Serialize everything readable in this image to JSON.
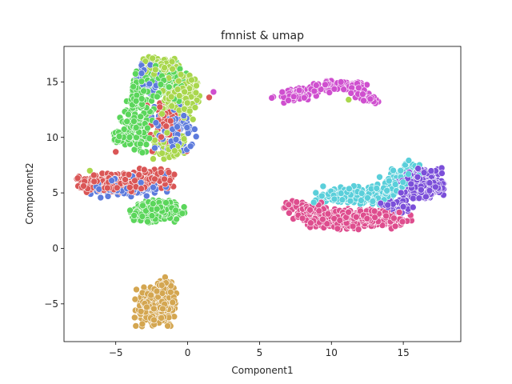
{
  "chart_data": {
    "type": "scatter",
    "title": "fmnist & umap",
    "xlabel": "Component1",
    "ylabel": "Component2",
    "xlim": [
      -8.6,
      19.0
    ],
    "ylim": [
      -8.4,
      18.2
    ],
    "xticks": [
      -5,
      0,
      5,
      10,
      15
    ],
    "yticks": [
      -5,
      0,
      5,
      10,
      15
    ],
    "grid": false,
    "legend": "none",
    "marker_edge_color": "#ffffff",
    "clusters": [
      {
        "color": "#d4a650",
        "cx": -2.3,
        "cy": -5.3,
        "sx": 0.85,
        "sy": 1.0,
        "n": 260,
        "tilt": 0.0
      },
      {
        "color": "#d4a650",
        "cx": -1.5,
        "cy": -3.3,
        "sx": 0.4,
        "sy": 0.5,
        "n": 30,
        "tilt": 0.0
      },
      {
        "color": "#cf4fcf",
        "cx": 8.0,
        "cy": 14.0,
        "sx": 1.2,
        "sy": 0.4,
        "n": 70,
        "tilt": 0.25
      },
      {
        "color": "#cf4fcf",
        "cx": 10.8,
        "cy": 14.6,
        "sx": 1.1,
        "sy": 0.3,
        "n": 70,
        "tilt": 0.0
      },
      {
        "color": "#cf4fcf",
        "cx": 12.2,
        "cy": 13.8,
        "sx": 0.6,
        "sy": 0.5,
        "n": 50,
        "tilt": -0.6
      },
      {
        "color": "#de4d8e",
        "cx": 11.8,
        "cy": 2.6,
        "sx": 2.2,
        "sy": 0.55,
        "n": 320,
        "tilt": 0.0
      },
      {
        "color": "#de4d8e",
        "cx": 8.3,
        "cy": 3.4,
        "sx": 0.9,
        "sy": 0.5,
        "n": 80,
        "tilt": 0.0
      },
      {
        "color": "#5acfda",
        "cx": 11.5,
        "cy": 4.8,
        "sx": 1.7,
        "sy": 0.5,
        "n": 170,
        "tilt": 0.0
      },
      {
        "color": "#5acfda",
        "cx": 14.6,
        "cy": 6.2,
        "sx": 0.9,
        "sy": 0.8,
        "n": 110,
        "tilt": 0.6
      },
      {
        "color": "#7b4fd9",
        "cx": 16.4,
        "cy": 5.8,
        "sx": 1.0,
        "sy": 0.8,
        "n": 260,
        "tilt": 0.0
      },
      {
        "color": "#7b4fd9",
        "cx": 14.6,
        "cy": 3.8,
        "sx": 0.8,
        "sy": 0.5,
        "n": 50,
        "tilt": 0.0
      },
      {
        "color": "#da5656",
        "cx": -5.2,
        "cy": 5.9,
        "sx": 1.4,
        "sy": 0.5,
        "n": 240,
        "tilt": 0.0
      },
      {
        "color": "#da5656",
        "cx": -2.7,
        "cy": 6.3,
        "sx": 1.1,
        "sy": 0.5,
        "n": 150,
        "tilt": 0.0
      },
      {
        "color": "#da5656",
        "cx": -1.5,
        "cy": 10.7,
        "sx": 0.8,
        "sy": 1.5,
        "n": 60,
        "tilt": 0.0
      },
      {
        "color": "#5d7bdc",
        "cx": -4.3,
        "cy": 5.6,
        "sx": 1.8,
        "sy": 0.6,
        "n": 130,
        "tilt": 0.0
      },
      {
        "color": "#5d7bdc",
        "cx": -1.0,
        "cy": 10.7,
        "sx": 0.9,
        "sy": 1.3,
        "n": 120,
        "tilt": 0.0
      },
      {
        "color": "#5d7bdc",
        "cx": -2.3,
        "cy": 15.5,
        "sx": 0.8,
        "sy": 0.9,
        "n": 70,
        "tilt": 0.0
      },
      {
        "color": "#5bd65b",
        "cx": -3.5,
        "cy": 11.5,
        "sx": 0.7,
        "sy": 1.6,
        "n": 150,
        "tilt": 0.0
      },
      {
        "color": "#5bd65b",
        "cx": -2.0,
        "cy": 15.0,
        "sx": 1.1,
        "sy": 1.0,
        "n": 200,
        "tilt": 0.0
      },
      {
        "color": "#5bd65b",
        "cx": -2.1,
        "cy": 3.3,
        "sx": 1.1,
        "sy": 0.6,
        "n": 220,
        "tilt": 0.0
      },
      {
        "color": "#5bd65b",
        "cx": -4.6,
        "cy": 10.0,
        "sx": 0.4,
        "sy": 0.4,
        "n": 40,
        "tilt": 0.0
      },
      {
        "color": "#a9d74d",
        "cx": -1.8,
        "cy": 16.2,
        "sx": 0.8,
        "sy": 0.6,
        "n": 110,
        "tilt": 0.0
      },
      {
        "color": "#a9d74d",
        "cx": -0.5,
        "cy": 13.7,
        "sx": 0.8,
        "sy": 1.2,
        "n": 160,
        "tilt": 0.0
      },
      {
        "color": "#a9d74d",
        "cx": -1.2,
        "cy": 9.3,
        "sx": 0.7,
        "sy": 0.9,
        "n": 80,
        "tilt": 0.0
      }
    ],
    "extra_points": [
      {
        "x": 1.8,
        "y": 14.1,
        "color": "#cf4fcf"
      },
      {
        "x": 11.2,
        "y": 13.4,
        "color": "#a9d74d"
      },
      {
        "x": 1.5,
        "y": 13.6,
        "color": "#da5656"
      },
      {
        "x": -6.8,
        "y": 7.0,
        "color": "#a9d74d"
      },
      {
        "x": -5.0,
        "y": 8.7,
        "color": "#da5656"
      },
      {
        "x": -2.3,
        "y": 17.2,
        "color": "#a9d74d"
      }
    ]
  }
}
